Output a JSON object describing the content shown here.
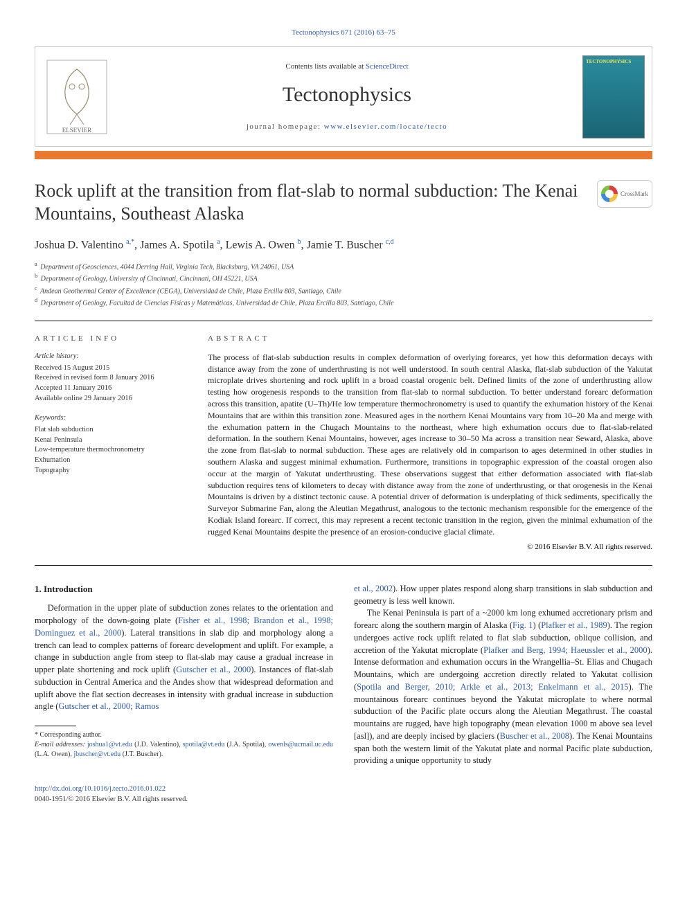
{
  "journal_ref": "Tectonophysics 671 (2016) 63–75",
  "header": {
    "contents_prefix": "Contents lists available at ",
    "contents_link": "ScienceDirect",
    "journal_name": "Tectonophysics",
    "homepage_prefix": "journal homepage: ",
    "homepage_link": "www.elsevier.com/locate/tecto",
    "cover_title": "TECTONOPHYSICS"
  },
  "crossmark_label": "CrossMark",
  "title": "Rock uplift at the transition from flat-slab to normal subduction: The Kenai Mountains, Southeast Alaska",
  "authors_html": "Joshua D. Valentino <sup>a,*</sup>, James A. Spotila <sup>a</sup>, Lewis A. Owen <sup>b</sup>, Jamie T. Buscher <sup>c,d</sup>",
  "affiliations": [
    {
      "key": "a",
      "text": "Department of Geosciences, 4044 Derring Hall, Virginia Tech, Blacksburg, VA 24061, USA"
    },
    {
      "key": "b",
      "text": "Department of Geology, University of Cincinnati, Cincinnati, OH 45221, USA"
    },
    {
      "key": "c",
      "text": "Andean Geothermal Center of Excellence (CEGA), Universidad de Chile, Plaza Ercilla 803, Santiago, Chile"
    },
    {
      "key": "d",
      "text": "Department of Geology, Facultad de Ciencias Físicas y Matemáticas, Universidad de Chile, Plaza Ercilla 803, Santiago, Chile"
    }
  ],
  "article_info": {
    "heading": "ARTICLE INFO",
    "history_label": "Article history:",
    "history": [
      "Received 15 August 2015",
      "Received in revised form 8 January 2016",
      "Accepted 11 January 2016",
      "Available online 29 January 2016"
    ],
    "keywords_label": "Keywords:",
    "keywords": [
      "Flat slab subduction",
      "Kenai Peninsula",
      "Low-temperature thermochronometry",
      "Exhumation",
      "Topography"
    ]
  },
  "abstract": {
    "heading": "ABSTRACT",
    "text": "The process of flat-slab subduction results in complex deformation of overlying forearcs, yet how this deformation decays with distance away from the zone of underthrusting is not well understood. In south central Alaska, flat-slab subduction of the Yakutat microplate drives shortening and rock uplift in a broad coastal orogenic belt. Defined limits of the zone of underthrusting allow testing how orogenesis responds to the transition from flat-slab to normal subduction. To better understand forearc deformation across this transition, apatite (U–Th)/He low temperature thermochronometry is used to quantify the exhumation history of the Kenai Mountains that are within this transition zone. Measured ages in the northern Kenai Mountains vary from 10–20 Ma and merge with the exhumation pattern in the Chugach Mountains to the northeast, where high exhumation occurs due to flat-slab-related deformation. In the southern Kenai Mountains, however, ages increase to 30–50 Ma across a transition near Seward, Alaska, above the zone from flat-slab to normal subduction. These ages are relatively old in comparison to ages determined in other studies in southern Alaska and suggest minimal exhumation. Furthermore, transitions in topographic expression of the coastal orogen also occur at the margin of Yakutat underthrusting. These observations suggest that either deformation associated with flat-slab subduction requires tens of kilometers to decay with distance away from the zone of underthrusting, or that orogenesis in the Kenai Mountains is driven by a distinct tectonic cause. A potential driver of deformation is underplating of thick sediments, specifically the Surveyor Submarine Fan, along the Aleutian Megathrust, analogous to the tectonic mechanism responsible for the emergence of the Kodiak Island forearc. If correct, this may represent a recent tectonic transition in the region, given the minimal exhumation of the rugged Kenai Mountains despite the presence of an erosion-conducive glacial climate.",
    "copyright": "© 2016 Elsevier B.V. All rights reserved."
  },
  "intro": {
    "heading": "1. Introduction",
    "col1_p1_pre": "Deformation in the upper plate of subduction zones relates to the orientation and morphology of the down-going plate (",
    "col1_p1_cite1": "Fisher et al., 1998; Brandon et al., 1998; Dominguez et al., 2000",
    "col1_p1_mid1": "). Lateral transitions in slab dip and morphology along a trench can lead to complex patterns of forearc development and uplift. For example, a change in subduction angle from steep to flat-slab may cause a gradual increase in upper plate shortening and rock uplift (",
    "col1_p1_cite2": "Gutscher et al., 2000",
    "col1_p1_mid2": "). Instances of flat-slab subduction in Central America and the Andes show that widespread deformation and uplift above the flat section decreases in intensity with gradual increase in subduction angle (",
    "col1_p1_cite3": "Gutscher et al., 2000; Ramos ",
    "col2_cont_cite": "et al., 2002",
    "col2_cont_text": "). How upper plates respond along sharp transitions in slab subduction and geometry is less well known.",
    "col2_p2_pre": "The Kenai Peninsula is part of a ~2000 km long exhumed accretionary prism and forearc along the southern margin of Alaska (",
    "col2_p2_fig": "Fig. 1",
    "col2_p2_mid1": ") (",
    "col2_p2_cite1": "Plafker et al., 1989",
    "col2_p2_mid2": "). The region undergoes active rock uplift related to flat slab subduction, oblique collision, and accretion of the Yakutat microplate (",
    "col2_p2_cite2": "Plafker and Berg, 1994; Haeussler et al., 2000",
    "col2_p2_mid3": "). Intense deformation and exhumation occurs in the Wrangellia–St. Elias and Chugach Mountains, which are undergoing accretion directly related to Yakutat collision (",
    "col2_p2_cite3": "Spotila and Berger, 2010; Arkle et al., 2013; Enkelmann et al., 2015",
    "col2_p2_mid4": "). The mountainous forearc continues beyond the Yakutat microplate to where normal subduction of the Pacific plate occurs along the Aleutian Megathrust. The coastal mountains are rugged, have high topography (mean elevation 1000 m above sea level [asl]), and are deeply incised by glaciers (",
    "col2_p2_cite4": "Buscher et al., 2008",
    "col2_p2_end": "). The Kenai Mountains span both the western limit of the Yakutat plate and normal Pacific plate subduction, providing a unique opportunity to study"
  },
  "footnotes": {
    "corr": "* Corresponding author.",
    "emails_label": "E-mail addresses: ",
    "emails": [
      {
        "addr": "joshua1@vt.edu",
        "who": "(J.D. Valentino)"
      },
      {
        "addr": "spotila@vt.edu",
        "who": "(J.A. Spotila)"
      },
      {
        "addr": "owenls@ucmail.uc.edu",
        "who": "(L.A. Owen)"
      },
      {
        "addr": "jbuscher@vt.edu",
        "who": "(J.T. Buscher)"
      }
    ]
  },
  "footer": {
    "doi": "http://dx.doi.org/10.1016/j.tecto.2016.01.022",
    "issn_line": "0040-1951/© 2016 Elsevier B.V. All rights reserved."
  },
  "colors": {
    "link": "#2a5caa",
    "orange": "#e8792f",
    "text": "#222222"
  }
}
